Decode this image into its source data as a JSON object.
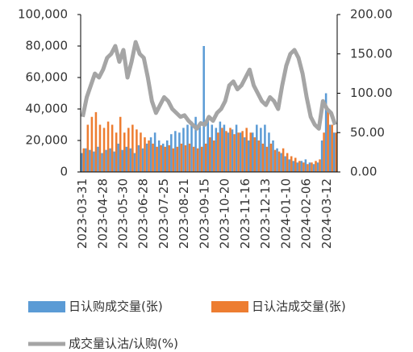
{
  "chart_data": {
    "type": "bar",
    "categories": [
      "2023-03-31",
      null,
      null,
      null,
      null,
      "2023-04-28",
      null,
      null,
      null,
      null,
      "2023-05-30",
      null,
      null,
      null,
      null,
      "2023-06-28",
      null,
      null,
      null,
      null,
      "2023-07-25",
      null,
      null,
      null,
      null,
      "2023-08-21",
      null,
      null,
      null,
      null,
      "2023-09-15",
      null,
      null,
      null,
      null,
      "2023-10-20",
      null,
      null,
      null,
      null,
      "2023-11-16",
      null,
      null,
      null,
      null,
      "2023-12-13",
      null,
      null,
      null,
      null,
      "2024-01-10",
      null,
      null,
      null,
      null,
      "2024-02-06",
      null,
      null,
      null,
      null,
      "2024-03-12",
      null,
      null
    ],
    "series": [
      {
        "name": "日认购成交量(张)",
        "type": "bar",
        "color": "#5b9bd5",
        "values": [
          12000,
          15000,
          14000,
          13000,
          16000,
          12000,
          14000,
          15000,
          13000,
          18000,
          14000,
          16000,
          15000,
          12000,
          17000,
          15000,
          18000,
          22000,
          25000,
          20000,
          18000,
          20000,
          24000,
          26000,
          25000,
          28000,
          30000,
          32000,
          35000,
          30000,
          80000,
          35000,
          30000,
          28000,
          32000,
          30000,
          25000,
          27000,
          30000,
          25000,
          22000,
          20000,
          25000,
          30000,
          28000,
          30000,
          25000,
          20000,
          15000,
          12000,
          10000,
          8000,
          7000,
          6000,
          7000,
          8000,
          6000,
          5000,
          6000,
          20000,
          50000,
          30000,
          25000
        ]
      },
      {
        "name": "日认沽成交量(张)",
        "type": "bar",
        "color": "#ed7d31",
        "values": [
          15000,
          30000,
          35000,
          38000,
          30000,
          28000,
          32000,
          30000,
          25000,
          35000,
          25000,
          28000,
          30000,
          27000,
          25000,
          22000,
          20000,
          18000,
          16000,
          17000,
          16000,
          17000,
          15000,
          16000,
          18000,
          17000,
          18000,
          16000,
          15000,
          16000,
          18000,
          22000,
          20000,
          25000,
          28000,
          26000,
          28000,
          24000,
          25000,
          26000,
          28000,
          25000,
          22000,
          20000,
          18000,
          16000,
          18000,
          14000,
          13000,
          15000,
          12000,
          10000,
          9000,
          7000,
          6000,
          5000,
          6000,
          7000,
          8000,
          25000,
          40000,
          30000,
          25000
        ]
      },
      {
        "name": "成交量认沽/认购(%)",
        "type": "line",
        "axis": "y2",
        "color": "#a5a5a5",
        "values": [
          70,
          95,
          110,
          125,
          120,
          130,
          145,
          150,
          160,
          140,
          155,
          120,
          140,
          165,
          150,
          145,
          120,
          90,
          75,
          85,
          95,
          90,
          80,
          75,
          70,
          72,
          65,
          60,
          55,
          62,
          60,
          70,
          65,
          75,
          80,
          90,
          110,
          115,
          105,
          110,
          120,
          130,
          110,
          100,
          90,
          85,
          95,
          90,
          80,
          110,
          135,
          150,
          155,
          145,
          125,
          95,
          70,
          60,
          55,
          90,
          80,
          75,
          60
        ]
      }
    ],
    "ylim": [
      0,
      100000
    ],
    "yticks": [
      0,
      {
        "value": 20000,
        "label": "20,000"
      },
      {
        "value": 40000,
        "label": "40,000"
      },
      {
        "value": 60000,
        "label": "60,000"
      },
      {
        "value": 80000,
        "label": "80,000"
      },
      {
        "value": 100000,
        "label": "100,000"
      }
    ],
    "y2lim": [
      0,
      200
    ],
    "y2ticks": [
      {
        "value": 0,
        "label": "0.00"
      },
      {
        "value": 50,
        "label": "50.00"
      },
      {
        "value": 100,
        "label": "100.00"
      },
      {
        "value": 150,
        "label": "150.00"
      },
      {
        "value": 200,
        "label": "200.00"
      }
    ],
    "legend": "bottom"
  }
}
